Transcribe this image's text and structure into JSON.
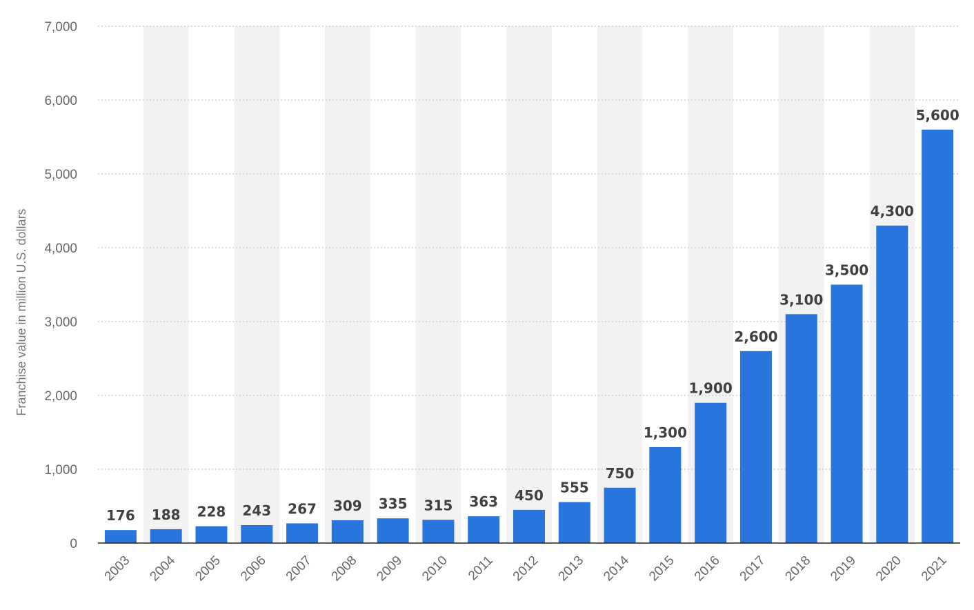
{
  "chart_data": {
    "type": "bar",
    "title": "",
    "xlabel": "",
    "ylabel": "Franchise value in million U.S. dollars",
    "categories": [
      "2003",
      "2004",
      "2005",
      "2006",
      "2007",
      "2008",
      "2009",
      "2010",
      "2011",
      "2012",
      "2013",
      "2014",
      "2015",
      "2016",
      "2017",
      "2018",
      "2019",
      "2020",
      "2021"
    ],
    "values": [
      176,
      188,
      228,
      243,
      267,
      309,
      335,
      315,
      363,
      450,
      555,
      750,
      1300,
      1900,
      2600,
      3100,
      3500,
      4300,
      5600
    ],
    "value_labels": [
      "176",
      "188",
      "228",
      "243",
      "267",
      "309",
      "335",
      "315",
      "363",
      "450",
      "555",
      "750",
      "1,300",
      "1,900",
      "2,600",
      "3,100",
      "3,500",
      "4,300",
      "5,600"
    ],
    "ylim": [
      0,
      7000
    ],
    "y_ticks": [
      0,
      1000,
      2000,
      3000,
      4000,
      5000,
      6000,
      7000
    ],
    "y_tick_labels": [
      "0",
      "1,000",
      "2,000",
      "3,000",
      "4,000",
      "5,000",
      "6,000",
      "7,000"
    ],
    "grid": true,
    "legend": false,
    "colors": {
      "bar": "#2876dd",
      "band": "#f2f2f2",
      "gridline": "#c8c8c8",
      "axis": "#222222"
    }
  }
}
